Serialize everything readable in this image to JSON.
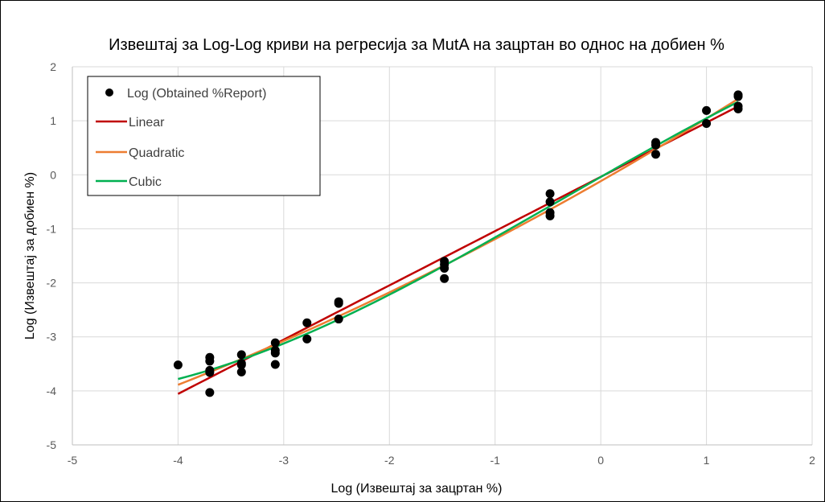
{
  "chart_data": {
    "type": "scatter",
    "title": "Извештај за Log-Log криви на регресија за MutA на зацртан во однос на добиен %",
    "xlabel": "Log (Извештај за зацртан %)",
    "ylabel": "Log (Извештај за добиен %)",
    "xlim": [
      -5,
      2
    ],
    "ylim": [
      -5,
      2
    ],
    "xticks": [
      "-5",
      "-4",
      "-3",
      "-2",
      "-1",
      "0",
      "1",
      "2"
    ],
    "yticks": [
      "2",
      "1",
      "0",
      "-1",
      "-2",
      "-3",
      "-4",
      "-5"
    ],
    "grid": true,
    "legend_position": "top-left",
    "series": [
      {
        "name": "Log (Obtained %Report)",
        "kind": "scatter",
        "color": "#000000",
        "x": [
          -4.0,
          -3.7,
          -3.7,
          -3.7,
          -3.7,
          -3.7,
          -3.4,
          -3.4,
          -3.4,
          -3.4,
          -3.08,
          -3.08,
          -3.08,
          -3.08,
          -2.78,
          -2.78,
          -2.48,
          -2.48,
          -2.48,
          -1.48,
          -1.48,
          -1.48,
          -1.48,
          -0.48,
          -0.48,
          -0.48,
          -0.48,
          0.52,
          0.52,
          0.52,
          1.0,
          1.0,
          1.3,
          1.3,
          1.3,
          1.3
        ],
        "y": [
          -3.52,
          -3.38,
          -3.45,
          -3.62,
          -3.66,
          -4.03,
          -3.33,
          -3.52,
          -3.49,
          -3.65,
          -3.11,
          -3.25,
          -3.3,
          -3.51,
          -2.74,
          -3.04,
          -2.35,
          -2.38,
          -2.67,
          -1.6,
          -1.66,
          -1.73,
          -1.92,
          -0.35,
          -0.5,
          -0.7,
          -0.76,
          0.6,
          0.55,
          0.38,
          1.19,
          0.95,
          1.48,
          1.45,
          1.27,
          1.22
        ]
      },
      {
        "name": "Linear",
        "kind": "line",
        "color": "#c00000",
        "x_range": [
          -4.0,
          1.3
        ],
        "fit": "linear"
      },
      {
        "name": "Quadratic",
        "kind": "line",
        "color": "#ed7d31",
        "x_range": [
          -4.0,
          1.3
        ],
        "fit": "quadratic"
      },
      {
        "name": "Cubic",
        "kind": "line",
        "color": "#00b050",
        "x_range": [
          -4.0,
          1.3
        ],
        "fit": "cubic"
      }
    ]
  }
}
